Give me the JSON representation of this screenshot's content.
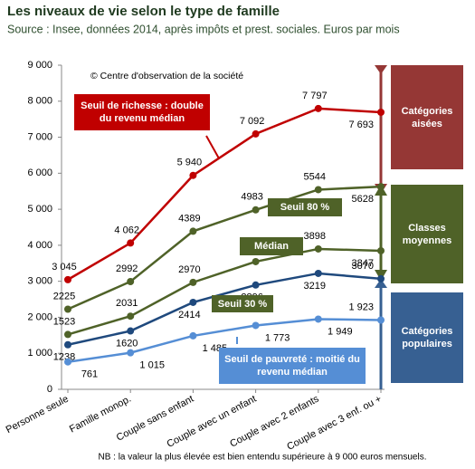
{
  "chart_data": {
    "type": "line",
    "title": "Les niveaux de vie selon le type de famille",
    "subtitle": "Source : Insee, données 2014,  après impôts et prest. sociales. Euros par mois",
    "copyright": "© Centre d'observation de la  société",
    "footnote": "NB :  la valeur la plus élevée est bien entendu supérieure  à 9 000 euros mensuels.",
    "categories": [
      "Personne seule",
      "Famille monop.",
      "Couple sans enfant",
      "Couple avec un enfant",
      "Couple avec 2 enfants",
      "Couple avec 3 enf. ou +"
    ],
    "series": [
      {
        "name": "Seuil de richesse : double du revenu médian",
        "color": "#c00000",
        "values": [
          3045,
          4062,
          5940,
          7092,
          7797,
          7693
        ],
        "value_labels": [
          "3 045",
          "4 062",
          "5 940",
          "7 092",
          "7 797",
          "7 693"
        ]
      },
      {
        "name": "Seuil  80 %",
        "color": "#4f6228",
        "values": [
          2225,
          2992,
          4389,
          4983,
          5544,
          5628
        ]
      },
      {
        "name": "Médian",
        "color": "#4f6228",
        "values": [
          1523,
          2031,
          2970,
          3546,
          3898,
          3847
        ]
      },
      {
        "name": "Seuil 30 %",
        "color": "#1f497d",
        "values": [
          1238,
          1620,
          2414,
          2896,
          3219,
          3070
        ]
      },
      {
        "name": "Seuil de pauvreté : moitié du revenu médian",
        "color": "#558ed5",
        "values": [
          761,
          1015,
          1485,
          1773,
          1949,
          1923
        ],
        "value_labels": [
          "761",
          "1 015",
          "1 485",
          "1 773",
          "1 949",
          "1 923"
        ]
      }
    ],
    "groups": [
      "Catégories aisées",
      "Classes moyennes",
      "Catégories populaires"
    ],
    "ylim": [
      0,
      9000
    ],
    "yticks": [
      {
        "value": 0,
        "label": "0"
      },
      {
        "value": 1000,
        "label": "1 000"
      },
      {
        "value": 2000,
        "label": "2 000"
      },
      {
        "value": 3000,
        "label": "3 000"
      },
      {
        "value": 4000,
        "label": "4 000"
      },
      {
        "value": 5000,
        "label": "5 000"
      },
      {
        "value": 6000,
        "label": "6 000"
      },
      {
        "value": 7000,
        "label": "7 000"
      },
      {
        "value": 8000,
        "label": "8 000"
      },
      {
        "value": 9000,
        "label": "9 000"
      }
    ],
    "grid": false
  }
}
